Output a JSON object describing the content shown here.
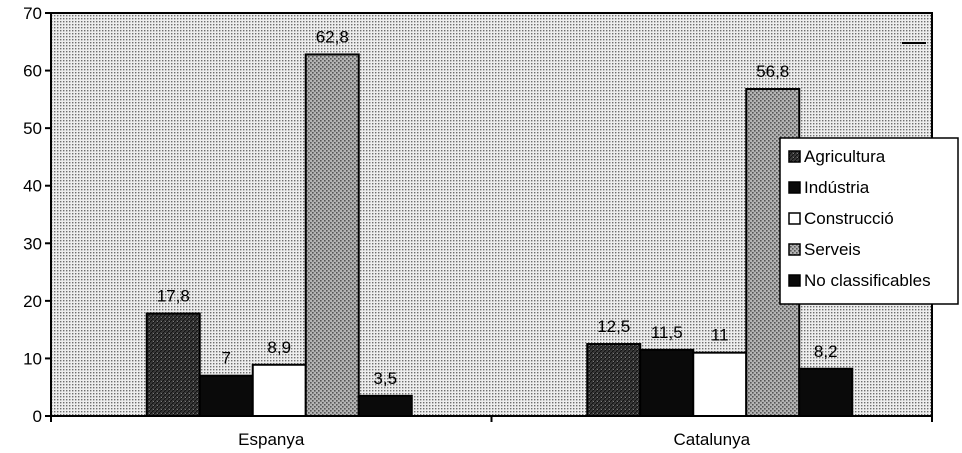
{
  "chart_data": {
    "type": "bar",
    "categories": [
      "Espanya",
      "Catalunya"
    ],
    "series": [
      {
        "name": "Agricultura",
        "values": [
          17.8,
          12.5
        ],
        "labels": [
          "17,8",
          "12,5"
        ],
        "fill": "dark-hatch"
      },
      {
        "name": "Indústria",
        "values": [
          7,
          11.5
        ],
        "labels": [
          "7",
          "11,5"
        ],
        "fill": "black"
      },
      {
        "name": "Construcció",
        "values": [
          8.9,
          11
        ],
        "labels": [
          "8,9",
          "11"
        ],
        "fill": "white"
      },
      {
        "name": "Serveis",
        "values": [
          62.8,
          56.8
        ],
        "labels": [
          "62,8",
          "56,8"
        ],
        "fill": "light-hatch"
      },
      {
        "name": "No classificables",
        "values": [
          3.5,
          8.2
        ],
        "labels": [
          "3,5",
          "8,2"
        ],
        "fill": "black"
      }
    ],
    "yticks": [
      "0",
      "10",
      "20",
      "30",
      "40",
      "50",
      "60",
      "70"
    ],
    "ylim": [
      0,
      70
    ],
    "legend": "right",
    "background": "dotted-grey",
    "colors": {
      "dark": "#2a2a2a",
      "black": "#0a0a0a",
      "white": "#ffffff",
      "light": "#8a8a8a"
    }
  }
}
